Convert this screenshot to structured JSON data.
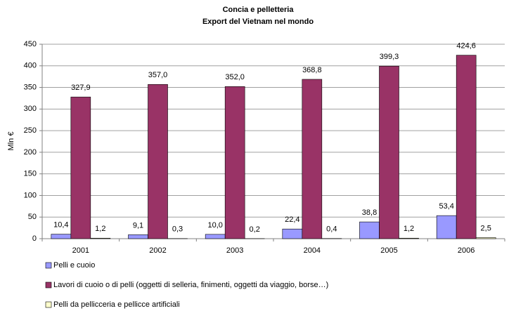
{
  "chart_data": {
    "type": "bar",
    "title": "Concia e pelletteria",
    "subtitle": "Export del Vietnam nel mondo",
    "y_label": "Mln €",
    "categories": [
      "2001",
      "2002",
      "2003",
      "2004",
      "2005",
      "2006"
    ],
    "series": [
      {
        "name": "Pelli e cuoio",
        "color": "#9999ff",
        "values": [
          10.4,
          9.1,
          10.0,
          22.4,
          38.8,
          53.4
        ],
        "value_labels": [
          "10,4",
          "9,1",
          "10,0",
          "22,4",
          "38,8",
          "53,4"
        ]
      },
      {
        "name": "Lavori di cuoio o di pelli (oggetti di selleria, finimenti, oggetti da viaggio, borse…)",
        "color": "#993366",
        "values": [
          327.9,
          357.0,
          352.0,
          368.8,
          399.3,
          424.6
        ],
        "value_labels": [
          "327,9",
          "357,0",
          "352,0",
          "368,8",
          "399,3",
          "424,6"
        ]
      },
      {
        "name": "Pelli da pellicceria e pellicce artificiali",
        "color": "#ffffcc",
        "values": [
          1.2,
          0.3,
          0.2,
          0.4,
          1.2,
          2.5
        ],
        "value_labels": [
          "1,2",
          "0,3",
          "0,2",
          "0,4",
          "1,2",
          "2,5"
        ]
      }
    ],
    "ylim": [
      0,
      450
    ],
    "yticks": [
      0,
      50,
      100,
      150,
      200,
      250,
      300,
      350,
      400,
      450
    ],
    "grid": true,
    "legend": "bottom"
  }
}
